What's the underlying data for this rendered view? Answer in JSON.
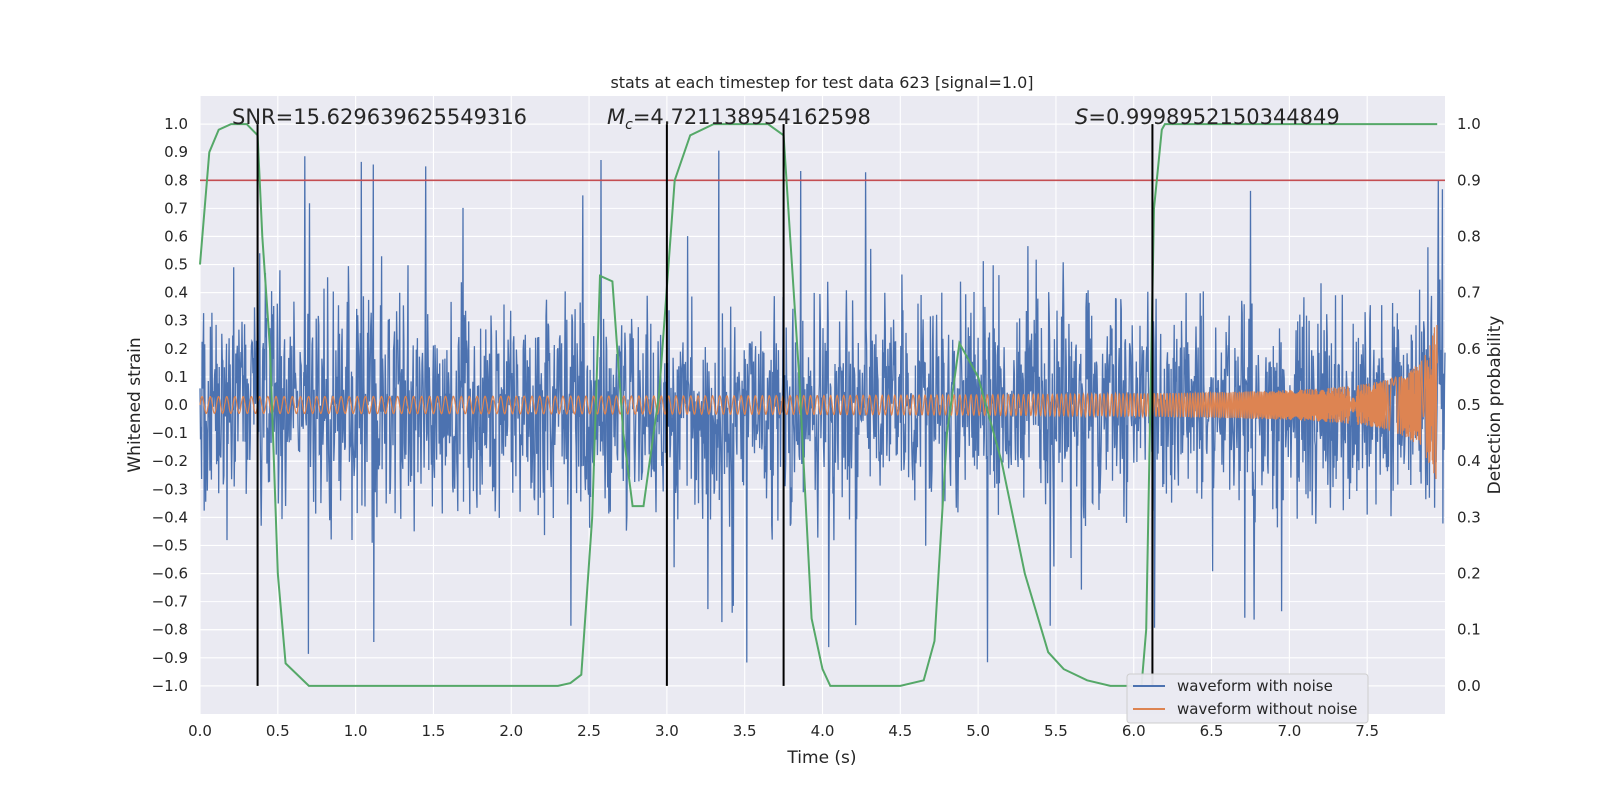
{
  "chart_data": {
    "type": "line",
    "title": "stats at each timestep for test data 623 [signal=1.0]",
    "xlabel": "Time (s)",
    "ylabel": "Whitened strain",
    "y2label": "Detection probability",
    "xlim": [
      0,
      8
    ],
    "ylim": [
      -1.1,
      1.1
    ],
    "y2lim": [
      -0.05,
      1.05
    ],
    "xticks": [
      0.0,
      0.5,
      1.0,
      1.5,
      2.0,
      2.5,
      3.0,
      3.5,
      4.0,
      4.5,
      5.0,
      5.5,
      6.0,
      6.5,
      7.0,
      7.5
    ],
    "xtick_labels": [
      "0.0",
      "0.5",
      "1.0",
      "1.5",
      "2.0",
      "2.5",
      "3.0",
      "3.5",
      "4.0",
      "4.5",
      "5.0",
      "5.5",
      "6.0",
      "6.5",
      "7.0",
      "7.5"
    ],
    "yticks": [
      1.0,
      0.9,
      0.8,
      0.7,
      0.6,
      0.5,
      0.4,
      0.3,
      0.2,
      0.1,
      0.0,
      -0.1,
      -0.2,
      -0.3,
      -0.4,
      -0.5,
      -0.6,
      -0.7,
      -0.8,
      -0.9,
      -1.0
    ],
    "ytick_labels": [
      "1.0",
      "0.9",
      "0.8",
      "0.7",
      "0.6",
      "0.5",
      "0.4",
      "0.3",
      "0.2",
      "0.1",
      "0.0",
      "−0.1",
      "−0.2",
      "−0.3",
      "−0.4",
      "−0.5",
      "−0.6",
      "−0.7",
      "−0.8",
      "−0.9",
      "−1.0"
    ],
    "y2ticks": [
      1.0,
      0.9,
      0.8,
      0.7,
      0.6,
      0.5,
      0.4,
      0.3,
      0.2,
      0.1,
      0.0
    ],
    "y2tick_labels": [
      "1.0",
      "0.9",
      "0.8",
      "0.7",
      "0.6",
      "0.5",
      "0.4",
      "0.3",
      "0.2",
      "0.1",
      "0.0"
    ],
    "stats": {
      "snr_label": "SNR=15.629639625549316",
      "mc_symbol": "M",
      "mc_subscript": "c",
      "mc_value": "=4.721138954162598",
      "s_symbol": "S",
      "s_value": "=0.9998952150344849"
    },
    "series": [
      {
        "name": "waveform with noise",
        "color": "#4c72b0",
        "noise_sigma": 0.19,
        "spike_peak": 0.92
      },
      {
        "name": "waveform without noise",
        "color": "#dd8452",
        "amplitude_start": 0.025,
        "amplitude_end": 0.34,
        "merger_time": 7.95
      }
    ],
    "detection_probability": {
      "color": "#55a868",
      "t": [
        0.0,
        0.06,
        0.12,
        0.2,
        0.3,
        0.37,
        0.4,
        0.45,
        0.5,
        0.55,
        0.7,
        1.0,
        1.5,
        2.0,
        2.3,
        2.38,
        2.45,
        2.52,
        2.57,
        2.65,
        2.72,
        2.78,
        2.85,
        2.95,
        3.05,
        3.15,
        3.3,
        3.5,
        3.65,
        3.75,
        3.85,
        3.93,
        4.0,
        4.05,
        4.2,
        4.5,
        4.65,
        4.72,
        4.8,
        4.88,
        5.0,
        5.15,
        5.3,
        5.45,
        5.55,
        5.7,
        5.85,
        6.0,
        6.05,
        6.08,
        6.13,
        6.18,
        6.2,
        6.4,
        7.0,
        7.5,
        7.95
      ],
      "p": [
        0.75,
        0.95,
        0.99,
        1.0,
        1.0,
        0.98,
        0.8,
        0.6,
        0.2,
        0.04,
        0.0,
        0.0,
        0.0,
        0.0,
        0.0,
        0.005,
        0.02,
        0.3,
        0.73,
        0.72,
        0.45,
        0.32,
        0.32,
        0.52,
        0.9,
        0.98,
        1.0,
        1.0,
        1.0,
        0.98,
        0.55,
        0.12,
        0.03,
        0.0,
        0.0,
        0.0,
        0.01,
        0.08,
        0.45,
        0.61,
        0.55,
        0.4,
        0.2,
        0.06,
        0.03,
        0.01,
        0.0,
        0.0,
        0.0,
        0.1,
        0.85,
        0.99,
        1.0,
        1.0,
        1.0,
        1.0,
        1.0
      ]
    },
    "threshold": {
      "value": 0.9,
      "color": "#c44e52"
    },
    "markers": {
      "times": [
        0.37,
        3.0,
        3.75,
        6.12
      ],
      "color": "#000000"
    },
    "legend": {
      "location": "lower-right",
      "entries": [
        "waveform with noise",
        "waveform without noise"
      ]
    }
  }
}
